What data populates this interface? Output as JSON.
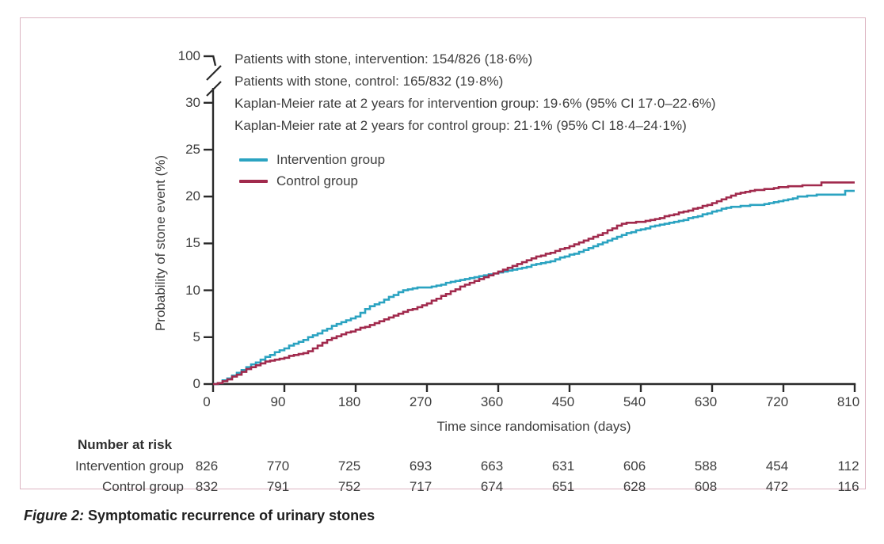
{
  "figure": {
    "caption_prefix": "Figure 2:",
    "caption_text": "Symptomatic recurrence of urinary stones",
    "border_color": "#dcb4c1"
  },
  "colors": {
    "intervention": "#2ba3c1",
    "control": "#a12a4d",
    "axis": "#2a2a2a",
    "text": "#3e3e3e"
  },
  "chart_data": {
    "type": "line",
    "subtype": "kaplan_meier_step",
    "title": "",
    "xlabel": "Time since randomisation (days)",
    "ylabel": "Probability of stone event (%)",
    "xlim": [
      0,
      810
    ],
    "ylim_main": [
      0,
      31
    ],
    "grid": false,
    "y_axis_break": true,
    "y_break_top_tick": "100",
    "x_ticks": [
      0,
      90,
      180,
      270,
      360,
      450,
      540,
      630,
      720,
      810
    ],
    "y_ticks": [
      0,
      5,
      10,
      15,
      20,
      25,
      30
    ],
    "legend_position": "upper-left-inside",
    "annotations": [
      "Patients with stone, intervention: 154/826 (18·6%)",
      "Patients with stone, control: 165/832 (19·8%)",
      "Kaplan-Meier rate at 2 years for intervention group: 19·6% (95% CI 17·0–22·6%)",
      "Kaplan-Meier rate at 2 years for control group: 21·1% (95% CI 18·4–24·1%)"
    ],
    "series": [
      {
        "name": "Intervention group",
        "color": "#2ba3c1",
        "points": [
          [
            0,
            0
          ],
          [
            6,
            0.1
          ],
          [
            12,
            0.4
          ],
          [
            18,
            0.6
          ],
          [
            24,
            0.9
          ],
          [
            30,
            1.2
          ],
          [
            36,
            1.5
          ],
          [
            42,
            1.8
          ],
          [
            48,
            2.1
          ],
          [
            54,
            2.3
          ],
          [
            60,
            2.6
          ],
          [
            66,
            2.9
          ],
          [
            72,
            3.1
          ],
          [
            78,
            3.4
          ],
          [
            84,
            3.6
          ],
          [
            90,
            3.8
          ],
          [
            96,
            4.1
          ],
          [
            102,
            4.3
          ],
          [
            108,
            4.5
          ],
          [
            114,
            4.7
          ],
          [
            120,
            5.0
          ],
          [
            126,
            5.2
          ],
          [
            132,
            5.4
          ],
          [
            138,
            5.7
          ],
          [
            144,
            5.9
          ],
          [
            150,
            6.2
          ],
          [
            156,
            6.4
          ],
          [
            162,
            6.6
          ],
          [
            168,
            6.8
          ],
          [
            174,
            7.0
          ],
          [
            180,
            7.2
          ],
          [
            186,
            7.6
          ],
          [
            192,
            8.0
          ],
          [
            198,
            8.3
          ],
          [
            204,
            8.5
          ],
          [
            210,
            8.7
          ],
          [
            216,
            9.0
          ],
          [
            222,
            9.3
          ],
          [
            228,
            9.5
          ],
          [
            234,
            9.8
          ],
          [
            240,
            10.0
          ],
          [
            246,
            10.1
          ],
          [
            252,
            10.2
          ],
          [
            258,
            10.3
          ],
          [
            270,
            10.3
          ],
          [
            276,
            10.4
          ],
          [
            282,
            10.5
          ],
          [
            288,
            10.6
          ],
          [
            294,
            10.8
          ],
          [
            300,
            10.9
          ],
          [
            306,
            11.0
          ],
          [
            312,
            11.1
          ],
          [
            318,
            11.2
          ],
          [
            324,
            11.3
          ],
          [
            330,
            11.4
          ],
          [
            336,
            11.5
          ],
          [
            342,
            11.6
          ],
          [
            348,
            11.7
          ],
          [
            354,
            11.8
          ],
          [
            360,
            11.9
          ],
          [
            366,
            12.0
          ],
          [
            372,
            12.1
          ],
          [
            378,
            12.2
          ],
          [
            384,
            12.3
          ],
          [
            390,
            12.4
          ],
          [
            396,
            12.5
          ],
          [
            402,
            12.7
          ],
          [
            408,
            12.8
          ],
          [
            414,
            12.9
          ],
          [
            420,
            13.0
          ],
          [
            426,
            13.1
          ],
          [
            432,
            13.3
          ],
          [
            438,
            13.5
          ],
          [
            444,
            13.6
          ],
          [
            450,
            13.8
          ],
          [
            456,
            13.9
          ],
          [
            462,
            14.1
          ],
          [
            468,
            14.3
          ],
          [
            474,
            14.5
          ],
          [
            480,
            14.7
          ],
          [
            486,
            14.9
          ],
          [
            492,
            15.1
          ],
          [
            498,
            15.3
          ],
          [
            504,
            15.5
          ],
          [
            510,
            15.7
          ],
          [
            516,
            15.9
          ],
          [
            522,
            16.1
          ],
          [
            528,
            16.2
          ],
          [
            534,
            16.4
          ],
          [
            540,
            16.5
          ],
          [
            546,
            16.6
          ],
          [
            552,
            16.8
          ],
          [
            558,
            16.9
          ],
          [
            564,
            17.0
          ],
          [
            570,
            17.1
          ],
          [
            576,
            17.2
          ],
          [
            582,
            17.3
          ],
          [
            588,
            17.4
          ],
          [
            594,
            17.5
          ],
          [
            600,
            17.7
          ],
          [
            606,
            17.8
          ],
          [
            612,
            17.9
          ],
          [
            618,
            18.1
          ],
          [
            624,
            18.2
          ],
          [
            630,
            18.4
          ],
          [
            636,
            18.5
          ],
          [
            642,
            18.7
          ],
          [
            648,
            18.8
          ],
          [
            654,
            18.9
          ],
          [
            666,
            19.0
          ],
          [
            678,
            19.1
          ],
          [
            690,
            19.1
          ],
          [
            696,
            19.2
          ],
          [
            702,
            19.3
          ],
          [
            708,
            19.4
          ],
          [
            714,
            19.5
          ],
          [
            720,
            19.6
          ],
          [
            726,
            19.7
          ],
          [
            732,
            19.8
          ],
          [
            738,
            20.0
          ],
          [
            744,
            20.0
          ],
          [
            750,
            20.1
          ],
          [
            762,
            20.2
          ],
          [
            780,
            20.2
          ],
          [
            792,
            20.2
          ],
          [
            798,
            20.6
          ],
          [
            810,
            20.6
          ]
        ]
      },
      {
        "name": "Control group",
        "color": "#a12a4d",
        "points": [
          [
            0,
            0
          ],
          [
            6,
            0.1
          ],
          [
            12,
            0.3
          ],
          [
            18,
            0.5
          ],
          [
            24,
            0.8
          ],
          [
            30,
            1.0
          ],
          [
            36,
            1.3
          ],
          [
            42,
            1.6
          ],
          [
            48,
            1.8
          ],
          [
            54,
            2.0
          ],
          [
            60,
            2.2
          ],
          [
            66,
            2.4
          ],
          [
            72,
            2.5
          ],
          [
            78,
            2.6
          ],
          [
            84,
            2.7
          ],
          [
            90,
            2.8
          ],
          [
            96,
            3.0
          ],
          [
            102,
            3.1
          ],
          [
            108,
            3.2
          ],
          [
            114,
            3.3
          ],
          [
            120,
            3.5
          ],
          [
            126,
            3.8
          ],
          [
            132,
            4.1
          ],
          [
            138,
            4.4
          ],
          [
            144,
            4.7
          ],
          [
            150,
            4.9
          ],
          [
            156,
            5.1
          ],
          [
            162,
            5.3
          ],
          [
            168,
            5.5
          ],
          [
            174,
            5.6
          ],
          [
            180,
            5.8
          ],
          [
            186,
            6.0
          ],
          [
            192,
            6.1
          ],
          [
            198,
            6.3
          ],
          [
            204,
            6.5
          ],
          [
            210,
            6.7
          ],
          [
            216,
            6.9
          ],
          [
            222,
            7.1
          ],
          [
            228,
            7.3
          ],
          [
            234,
            7.5
          ],
          [
            240,
            7.7
          ],
          [
            246,
            7.9
          ],
          [
            252,
            8.0
          ],
          [
            258,
            8.2
          ],
          [
            264,
            8.4
          ],
          [
            270,
            8.6
          ],
          [
            276,
            8.9
          ],
          [
            282,
            9.1
          ],
          [
            288,
            9.4
          ],
          [
            294,
            9.6
          ],
          [
            300,
            9.9
          ],
          [
            306,
            10.1
          ],
          [
            312,
            10.4
          ],
          [
            318,
            10.6
          ],
          [
            324,
            10.8
          ],
          [
            330,
            11.0
          ],
          [
            336,
            11.2
          ],
          [
            342,
            11.4
          ],
          [
            348,
            11.6
          ],
          [
            354,
            11.8
          ],
          [
            360,
            12.0
          ],
          [
            366,
            12.2
          ],
          [
            372,
            12.4
          ],
          [
            378,
            12.6
          ],
          [
            384,
            12.8
          ],
          [
            390,
            13.0
          ],
          [
            396,
            13.2
          ],
          [
            402,
            13.4
          ],
          [
            408,
            13.6
          ],
          [
            414,
            13.7
          ],
          [
            420,
            13.9
          ],
          [
            426,
            14.0
          ],
          [
            432,
            14.2
          ],
          [
            438,
            14.4
          ],
          [
            444,
            14.5
          ],
          [
            450,
            14.7
          ],
          [
            456,
            14.9
          ],
          [
            462,
            15.1
          ],
          [
            468,
            15.3
          ],
          [
            474,
            15.5
          ],
          [
            480,
            15.7
          ],
          [
            486,
            15.9
          ],
          [
            492,
            16.1
          ],
          [
            498,
            16.4
          ],
          [
            504,
            16.6
          ],
          [
            510,
            16.9
          ],
          [
            516,
            17.1
          ],
          [
            522,
            17.2
          ],
          [
            534,
            17.3
          ],
          [
            540,
            17.3
          ],
          [
            546,
            17.4
          ],
          [
            552,
            17.5
          ],
          [
            558,
            17.6
          ],
          [
            564,
            17.7
          ],
          [
            570,
            17.9
          ],
          [
            576,
            18.0
          ],
          [
            582,
            18.1
          ],
          [
            588,
            18.3
          ],
          [
            594,
            18.4
          ],
          [
            600,
            18.5
          ],
          [
            606,
            18.7
          ],
          [
            612,
            18.8
          ],
          [
            618,
            19.0
          ],
          [
            624,
            19.1
          ],
          [
            630,
            19.3
          ],
          [
            636,
            19.5
          ],
          [
            642,
            19.7
          ],
          [
            648,
            19.9
          ],
          [
            654,
            20.1
          ],
          [
            660,
            20.3
          ],
          [
            666,
            20.4
          ],
          [
            672,
            20.5
          ],
          [
            678,
            20.6
          ],
          [
            684,
            20.7
          ],
          [
            696,
            20.8
          ],
          [
            708,
            20.9
          ],
          [
            714,
            21.0
          ],
          [
            726,
            21.1
          ],
          [
            738,
            21.1
          ],
          [
            744,
            21.2
          ],
          [
            762,
            21.2
          ],
          [
            768,
            21.5
          ],
          [
            810,
            21.5
          ]
        ]
      }
    ],
    "number_at_risk": {
      "header": "Number at risk",
      "timepoints": [
        0,
        90,
        180,
        270,
        360,
        450,
        540,
        630,
        720,
        810
      ],
      "rows": [
        {
          "label": "Intervention group",
          "values": [
            826,
            770,
            725,
            693,
            663,
            631,
            606,
            588,
            454,
            112
          ]
        },
        {
          "label": "Control group",
          "values": [
            832,
            791,
            752,
            717,
            674,
            651,
            628,
            608,
            472,
            116
          ]
        }
      ]
    }
  }
}
